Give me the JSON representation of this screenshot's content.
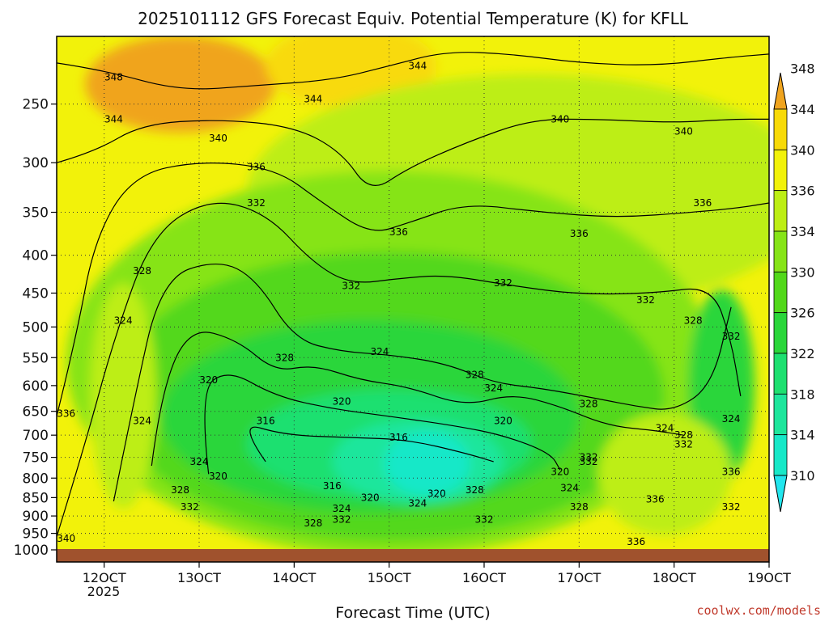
{
  "chart_data": {
    "type": "heatmap",
    "title": "2025101112 GFS Forecast Equiv. Potential Temperature (K) for KFLL",
    "xlabel": "Forecast Time (UTC)",
    "ylabel": "",
    "credit": "coolwx.com/models",
    "year_label": "2025",
    "y_scale": "log-pressure",
    "y_range": [
      1000,
      200
    ],
    "x_range": [
      11.5,
      19
    ],
    "grid": true,
    "x_ticks": [
      {
        "value": 12,
        "label": "12OCT"
      },
      {
        "value": 13,
        "label": "13OCT"
      },
      {
        "value": 14,
        "label": "14OCT"
      },
      {
        "value": 15,
        "label": "15OCT"
      },
      {
        "value": 16,
        "label": "16OCT"
      },
      {
        "value": 17,
        "label": "17OCT"
      },
      {
        "value": 18,
        "label": "18OCT"
      },
      {
        "value": 19,
        "label": "19OCT"
      }
    ],
    "y_ticks": [
      {
        "value": 250,
        "label": "250"
      },
      {
        "value": 300,
        "label": "300"
      },
      {
        "value": 350,
        "label": "350"
      },
      {
        "value": 400,
        "label": "400"
      },
      {
        "value": 450,
        "label": "450"
      },
      {
        "value": 500,
        "label": "500"
      },
      {
        "value": 550,
        "label": "550"
      },
      {
        "value": 600,
        "label": "600"
      },
      {
        "value": 650,
        "label": "650"
      },
      {
        "value": 700,
        "label": "700"
      },
      {
        "value": 750,
        "label": "750"
      },
      {
        "value": 800,
        "label": "800"
      },
      {
        "value": 850,
        "label": "850"
      },
      {
        "value": 900,
        "label": "900"
      },
      {
        "value": 950,
        "label": "950"
      },
      {
        "value": 1000,
        "label": "1000"
      }
    ],
    "colorbar": {
      "levels": [
        310,
        314,
        318,
        322,
        326,
        330,
        334,
        336,
        340,
        344,
        348
      ],
      "labels": [
        "310",
        "314",
        "318",
        "322",
        "326",
        "330",
        "334",
        "336",
        "340",
        "344",
        "348"
      ],
      "colors": [
        "#22e6ee",
        "#17e8c8",
        "#1ee69c",
        "#1ee070",
        "#2ad63a",
        "#52d81a",
        "#86e418",
        "#bdee14",
        "#f2f20a",
        "#f8da08",
        "#f0a41e"
      ]
    },
    "contours": [
      {
        "value": 344,
        "points": [
          [
            11.5,
            220
          ],
          [
            12.0,
            225
          ],
          [
            12.8,
            240
          ],
          [
            13.6,
            236
          ],
          [
            14.4,
            232
          ],
          [
            15.0,
            222
          ],
          [
            15.6,
            212
          ],
          [
            16.3,
            214
          ],
          [
            17.0,
            220
          ],
          [
            17.8,
            222
          ],
          [
            18.6,
            216
          ],
          [
            19.0,
            214
          ]
        ]
      },
      {
        "value": 340,
        "points": [
          [
            11.5,
            300
          ],
          [
            11.9,
            290
          ],
          [
            12.4,
            266
          ],
          [
            13.2,
            262
          ],
          [
            14.0,
            268
          ],
          [
            14.5,
            290
          ],
          [
            14.8,
            330
          ],
          [
            15.2,
            305
          ],
          [
            15.8,
            282
          ],
          [
            16.5,
            262
          ],
          [
            17.2,
            262
          ],
          [
            18.0,
            265
          ],
          [
            18.6,
            262
          ],
          [
            19.0,
            262
          ]
        ]
      },
      {
        "value": 336,
        "points": [
          [
            11.5,
            660
          ],
          [
            11.7,
            520
          ],
          [
            11.9,
            380
          ],
          [
            12.3,
            312
          ],
          [
            13.0,
            298
          ],
          [
            13.8,
            305
          ],
          [
            14.3,
            340
          ],
          [
            14.8,
            375
          ],
          [
            15.2,
            362
          ],
          [
            15.8,
            340
          ],
          [
            16.6,
            350
          ],
          [
            17.4,
            356
          ],
          [
            18.2,
            350
          ],
          [
            18.7,
            345
          ],
          [
            19.0,
            340
          ]
        ]
      },
      {
        "value": 332,
        "points": [
          [
            11.5,
            960
          ],
          [
            11.8,
            720
          ],
          [
            12.1,
            520
          ],
          [
            12.5,
            375
          ],
          [
            13.1,
            335
          ],
          [
            13.7,
            350
          ],
          [
            14.2,
            410
          ],
          [
            14.6,
            438
          ],
          [
            15.1,
            430
          ],
          [
            15.6,
            425
          ],
          [
            16.3,
            440
          ],
          [
            17.0,
            452
          ],
          [
            17.8,
            450
          ],
          [
            18.4,
            440
          ],
          [
            18.6,
            520
          ],
          [
            18.7,
            620
          ]
        ]
      },
      {
        "value": 328,
        "points": [
          [
            12.1,
            860
          ],
          [
            12.3,
            640
          ],
          [
            12.6,
            430
          ],
          [
            13.2,
            405
          ],
          [
            13.6,
            430
          ],
          [
            14.0,
            520
          ],
          [
            14.5,
            540
          ],
          [
            15.0,
            545
          ],
          [
            15.6,
            560
          ],
          [
            16.1,
            595
          ],
          [
            16.6,
            605
          ],
          [
            17.2,
            625
          ],
          [
            17.6,
            640
          ],
          [
            18.0,
            650
          ],
          [
            18.4,
            600
          ],
          [
            18.6,
            470
          ]
        ]
      },
      {
        "value": 324,
        "points": [
          [
            12.5,
            770
          ],
          [
            12.6,
            610
          ],
          [
            12.9,
            500
          ],
          [
            13.4,
            520
          ],
          [
            13.8,
            575
          ],
          [
            14.2,
            562
          ],
          [
            14.7,
            590
          ],
          [
            15.2,
            602
          ],
          [
            15.8,
            640
          ],
          [
            16.3,
            615
          ],
          [
            16.8,
            640
          ],
          [
            17.3,
            680
          ],
          [
            17.8,
            690
          ],
          [
            18.1,
            700
          ]
        ]
      },
      {
        "value": 320,
        "points": [
          [
            13.1,
            790
          ],
          [
            13.0,
            610
          ],
          [
            13.3,
            570
          ],
          [
            13.8,
            620
          ],
          [
            14.4,
            645
          ],
          [
            15.0,
            660
          ],
          [
            15.7,
            680
          ],
          [
            16.2,
            700
          ],
          [
            16.7,
            740
          ],
          [
            16.8,
            780
          ]
        ]
      },
      {
        "value": 316,
        "points": [
          [
            13.7,
            760
          ],
          [
            13.4,
            670
          ],
          [
            13.9,
            700
          ],
          [
            14.6,
            705
          ],
          [
            15.2,
            710
          ],
          [
            15.8,
            740
          ],
          [
            16.1,
            760
          ]
        ]
      }
    ],
    "contour_labels": [
      {
        "label": "348",
        "x": 12.1,
        "p": 230
      },
      {
        "label": "344",
        "x": 12.1,
        "p": 262
      },
      {
        "label": "344",
        "x": 14.2,
        "p": 246
      },
      {
        "label": "344",
        "x": 15.3,
        "p": 222
      },
      {
        "label": "340",
        "x": 13.2,
        "p": 278
      },
      {
        "label": "340",
        "x": 16.8,
        "p": 262
      },
      {
        "label": "340",
        "x": 18.1,
        "p": 272
      },
      {
        "label": "340",
        "x": 11.6,
        "p": 965
      },
      {
        "label": "336",
        "x": 13.6,
        "p": 304
      },
      {
        "label": "336",
        "x": 15.1,
        "p": 372
      },
      {
        "label": "336",
        "x": 17.0,
        "p": 374
      },
      {
        "label": "336",
        "x": 18.3,
        "p": 340
      },
      {
        "label": "336",
        "x": 11.6,
        "p": 655
      },
      {
        "label": "336",
        "x": 17.8,
        "p": 855
      },
      {
        "label": "336",
        "x": 18.6,
        "p": 785
      },
      {
        "label": "336",
        "x": 17.6,
        "p": 975
      },
      {
        "label": "332",
        "x": 13.6,
        "p": 340
      },
      {
        "label": "332",
        "x": 14.6,
        "p": 440
      },
      {
        "label": "332",
        "x": 16.2,
        "p": 436
      },
      {
        "label": "332",
        "x": 17.7,
        "p": 460
      },
      {
        "label": "332",
        "x": 18.6,
        "p": 515
      },
      {
        "label": "332",
        "x": 17.1,
        "p": 760
      },
      {
        "label": "332",
        "x": 18.1,
        "p": 720
      },
      {
        "label": "332",
        "x": 12.9,
        "p": 875
      },
      {
        "label": "332",
        "x": 14.5,
        "p": 910
      },
      {
        "label": "332",
        "x": 16.0,
        "p": 910
      },
      {
        "label": "332",
        "x": 18.6,
        "p": 875
      },
      {
        "label": "328",
        "x": 12.4,
        "p": 420
      },
      {
        "label": "328",
        "x": 13.9,
        "p": 550
      },
      {
        "label": "328",
        "x": 15.9,
        "p": 580
      },
      {
        "label": "328",
        "x": 17.1,
        "p": 635
      },
      {
        "label": "328",
        "x": 18.1,
        "p": 700
      },
      {
        "label": "328",
        "x": 18.2,
        "p": 490
      },
      {
        "label": "328",
        "x": 12.8,
        "p": 830
      },
      {
        "label": "328",
        "x": 14.2,
        "p": 920
      },
      {
        "label": "328",
        "x": 15.9,
        "p": 830
      },
      {
        "label": "328",
        "x": 17.0,
        "p": 875
      },
      {
        "label": "324",
        "x": 12.2,
        "p": 490
      },
      {
        "label": "324",
        "x": 12.4,
        "p": 670
      },
      {
        "label": "324",
        "x": 14.9,
        "p": 540
      },
      {
        "label": "324",
        "x": 16.1,
        "p": 605
      },
      {
        "label": "324",
        "x": 17.9,
        "p": 685
      },
      {
        "label": "324",
        "x": 18.6,
        "p": 665
      },
      {
        "label": "324",
        "x": 13.0,
        "p": 760
      },
      {
        "label": "324",
        "x": 14.5,
        "p": 880
      },
      {
        "label": "324",
        "x": 15.3,
        "p": 865
      },
      {
        "label": "324",
        "x": 16.9,
        "p": 825
      },
      {
        "label": "320",
        "x": 13.1,
        "p": 590
      },
      {
        "label": "320",
        "x": 14.5,
        "p": 630
      },
      {
        "label": "320",
        "x": 16.2,
        "p": 670
      },
      {
        "label": "320",
        "x": 13.2,
        "p": 795
      },
      {
        "label": "320",
        "x": 14.8,
        "p": 850
      },
      {
        "label": "320",
        "x": 15.5,
        "p": 840
      },
      {
        "label": "320",
        "x": 16.8,
        "p": 785
      },
      {
        "label": "316",
        "x": 13.7,
        "p": 670
      },
      {
        "label": "316",
        "x": 15.1,
        "p": 705
      },
      {
        "label": "316",
        "x": 14.4,
        "p": 820
      },
      {
        "label": "332",
        "x": 17.1,
        "p": 750
      }
    ]
  }
}
